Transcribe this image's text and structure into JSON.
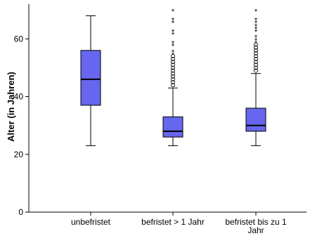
{
  "chart_data": {
    "type": "boxplot",
    "ylabel": "Alter (in Jahren)",
    "ylim": [
      0,
      72
    ],
    "yticks": [
      0,
      20,
      40,
      60
    ],
    "categories": [
      [
        "unbefristet"
      ],
      [
        "befristet > 1 Jahr"
      ],
      [
        "befristet bis zu 1",
        "Jahr"
      ]
    ],
    "boxes": [
      {
        "whisker_low": 23,
        "q1": 37,
        "median": 46,
        "q3": 56,
        "whisker_high": 68,
        "outliers": [],
        "extremes": []
      },
      {
        "whisker_low": 23,
        "q1": 26,
        "median": 28,
        "q3": 33,
        "whisker_high": 43,
        "outliers": [
          44,
          45,
          46,
          47,
          48,
          49,
          50,
          51,
          52,
          53,
          54
        ],
        "extremes": [
          55,
          56,
          58,
          59,
          62,
          63,
          66,
          67,
          70
        ]
      },
      {
        "whisker_low": 23,
        "q1": 28,
        "median": 30,
        "q3": 36,
        "whisker_high": 48,
        "outliers": [
          49,
          50,
          51,
          52,
          53,
          54,
          55,
          56,
          57,
          58
        ],
        "extremes": [
          59,
          60,
          61,
          63,
          64,
          65,
          66,
          67,
          70
        ]
      }
    ],
    "box_color": "#6666ee",
    "grid": false
  }
}
